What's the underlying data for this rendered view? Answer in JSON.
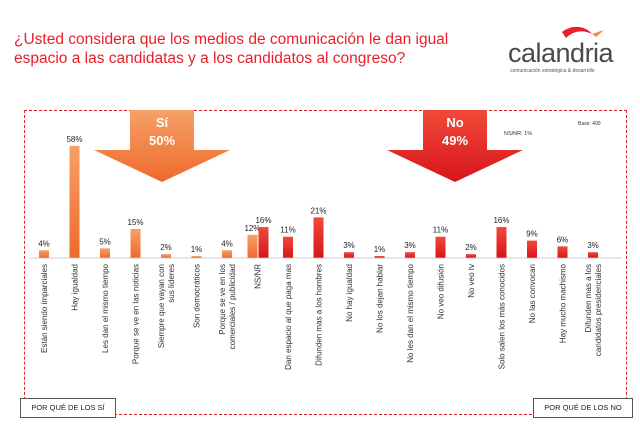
{
  "header": {
    "title": "¿Usted considera que los medios de comunicación le dan igual espacio a las candidatas y a los candidatos al congreso?"
  },
  "logo": {
    "word": "calandria",
    "tagline": "comunicación estratégica & desarrollo"
  },
  "notes": {
    "base": "Base: 400",
    "nsnr": "NS/NR: 1%"
  },
  "footer": {
    "left": "POR QUÉ DE LOS SÍ",
    "right": "POR QUÉ DE LOS NO"
  },
  "colors": {
    "si": "#f58a4b",
    "no": "#e11d26",
    "title": "#e8202a"
  },
  "chart_data": {
    "type": "bar",
    "groups": [
      {
        "name": "Sí",
        "label": "Sí",
        "value_label": "50%",
        "total": 50,
        "color": "#f58a4b",
        "categories": [
          "Están siendo imparciales",
          "Hay igualdad",
          "Les dan el mismo tiempo",
          "Porque se ve en las noticias",
          "Siempre que vayan con sus líderes",
          "Son democráticos",
          "Porque se ve en los comerciales / publicidad",
          "NS/NR"
        ],
        "values": [
          4,
          58,
          5,
          15,
          2,
          1,
          4,
          12
        ],
        "value_labels": [
          "4%",
          "58%",
          "5%",
          "15%",
          "2%",
          "1%",
          "4%",
          "12%"
        ]
      },
      {
        "name": "No",
        "label": "No",
        "value_label": "49%",
        "total": 49,
        "color": "#e11d26",
        "categories": [
          "NS/NR",
          "Dan espacio al que paga mas",
          "Difunden mas a los hombres",
          "No hay igualdad",
          "No los dejan hablar",
          "No les dan el mismo tiempo",
          "No veo difusión",
          "No veo tv",
          "Solo salen los más conocidos",
          "No las convocan",
          "Hay mucho machismo",
          "Difunden mas a los candidatos presidenciales"
        ],
        "values": [
          16,
          11,
          21,
          3,
          1,
          3,
          11,
          2,
          16,
          9,
          6,
          3
        ],
        "value_labels": [
          "16%",
          "11%",
          "21%",
          "3%",
          "1%",
          "3%",
          "11%",
          "2%",
          "16%",
          "9%",
          "6%",
          "3%"
        ]
      }
    ],
    "tick_labels": [
      "Están siendo imparciales",
      "Hay igualdad",
      "Les dan el mismo tiempo",
      "Porque se ve en las noticias",
      "Siempre que vayan con sus líderes",
      "Son democráticos",
      "Porque se ve en los comerciales / publicidad",
      "NS/NR",
      "Dan espacio al que paga mas",
      "Difunden mas a los hombres",
      "No hay igualdad",
      "No los dejan hablar",
      "No les dan el mismo tiempo",
      "No veo difusión",
      "No veo tv",
      "Solo salen los más conocidos",
      "No las convocan",
      "Hay mucho machismo",
      "Difunden mas a los candidatos presidenciales"
    ],
    "ylim": [
      0,
      60
    ],
    "grid": false,
    "legend": "none"
  }
}
